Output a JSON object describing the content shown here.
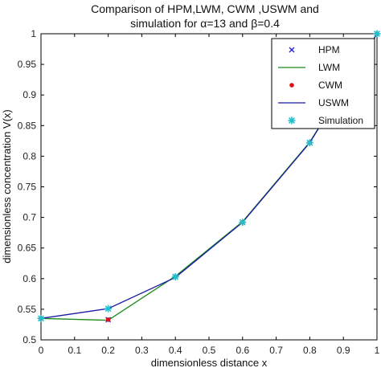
{
  "chart_data": {
    "type": "line",
    "title_line1": "Comparison of HPM,LWM, CWM ,USWM and",
    "title_line2": "simulation for α=13 and β=0.4",
    "xlabel": "dimensionless  distance x",
    "ylabel": "dimensionless concentration V(x)",
    "xlim": [
      0,
      1
    ],
    "ylim": [
      0.5,
      1
    ],
    "xticks": [
      0,
      0.1,
      0.2,
      0.3,
      0.4,
      0.5,
      0.6,
      0.7,
      0.8,
      0.9,
      1
    ],
    "xtick_labels": [
      "0",
      "0.1",
      "0.2",
      "0.3",
      "0.4",
      "0.5",
      "0.6",
      "0.7",
      "0.8",
      "0.9",
      "1"
    ],
    "yticks": [
      0.5,
      0.55,
      0.6,
      0.65,
      0.7,
      0.75,
      0.8,
      0.85,
      0.9,
      0.95,
      1
    ],
    "ytick_labels": [
      "0.5",
      "0.55",
      "0.6",
      "0.65",
      "0.7",
      "0.75",
      "0.8",
      "0.85",
      "0.9",
      "0.95",
      "1"
    ],
    "grid": false,
    "legend_position": "top-right",
    "series": [
      {
        "name": "HPM",
        "style": "marker",
        "marker": "x",
        "color": "#1f1fd0",
        "x": [
          0,
          0.2,
          0.4,
          0.6,
          0.8,
          1
        ],
        "y": [
          0.535,
          0.533,
          0.603,
          0.692,
          0.822,
          1.0
        ]
      },
      {
        "name": "LWM",
        "style": "line",
        "color": "#1a8a1a",
        "x": [
          0,
          0.2,
          0.4,
          0.6,
          0.8,
          1
        ],
        "y": [
          0.535,
          0.532,
          0.604,
          0.693,
          0.823,
          1.0
        ]
      },
      {
        "name": "CWM",
        "style": "marker",
        "marker": "dot",
        "color": "#e01010",
        "x": [
          0,
          0.2,
          0.4,
          0.6,
          0.8,
          1
        ],
        "y": [
          0.535,
          0.533,
          0.603,
          0.692,
          0.822,
          1.0
        ]
      },
      {
        "name": "USWM",
        "style": "line",
        "color": "#1a1aa8",
        "x": [
          0,
          0.2,
          0.4,
          0.6,
          0.8,
          1
        ],
        "y": [
          0.535,
          0.551,
          0.602,
          0.692,
          0.822,
          1.0
        ]
      },
      {
        "name": "Simulation",
        "style": "marker",
        "marker": "star",
        "color": "#20c0d0",
        "x": [
          0,
          0.2,
          0.4,
          0.6,
          0.8,
          1
        ],
        "y": [
          0.535,
          0.551,
          0.603,
          0.692,
          0.822,
          1.0
        ]
      }
    ]
  }
}
